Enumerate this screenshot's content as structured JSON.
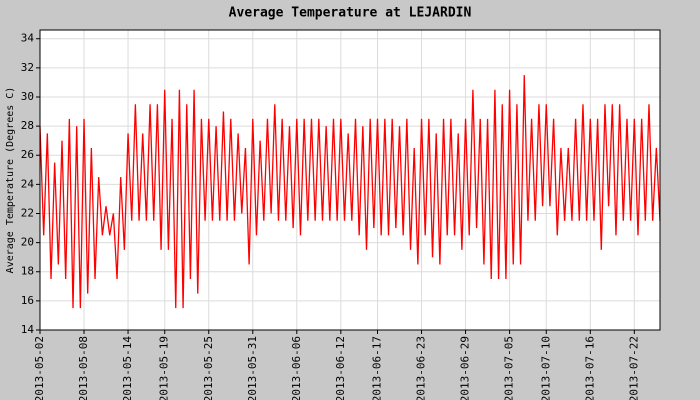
{
  "chart_data": {
    "type": "line",
    "title": "Average Temperature at LEJARDIN",
    "y_label": "Average Temperature (Degrees C)",
    "color": "#ff0000",
    "grid": true,
    "ylim": [
      14,
      34.6
    ],
    "yticks": [
      14,
      16,
      18,
      20,
      22,
      24,
      26,
      28,
      30,
      32,
      34
    ],
    "categories": [
      "2013-05-02",
      null,
      null,
      null,
      null,
      null,
      null,
      null,
      null,
      null,
      null,
      null,
      "2013-05-08",
      null,
      null,
      null,
      null,
      null,
      null,
      null,
      null,
      null,
      null,
      null,
      "2013-05-14",
      null,
      null,
      null,
      null,
      null,
      null,
      null,
      null,
      null,
      "2013-05-19",
      null,
      null,
      null,
      null,
      null,
      null,
      null,
      null,
      null,
      null,
      null,
      "2013-05-25",
      null,
      null,
      null,
      null,
      null,
      null,
      null,
      null,
      null,
      null,
      null,
      "2013-05-31",
      null,
      null,
      null,
      null,
      null,
      null,
      null,
      null,
      null,
      null,
      null,
      "2013-06-06",
      null,
      null,
      null,
      null,
      null,
      null,
      null,
      null,
      null,
      null,
      null,
      "2013-06-12",
      null,
      null,
      null,
      null,
      null,
      null,
      null,
      null,
      null,
      "2013-06-17",
      null,
      null,
      null,
      null,
      null,
      null,
      null,
      null,
      null,
      null,
      null,
      "2013-06-23",
      null,
      null,
      null,
      null,
      null,
      null,
      null,
      null,
      null,
      null,
      null,
      "2013-06-29",
      null,
      null,
      null,
      null,
      null,
      null,
      null,
      null,
      null,
      null,
      null,
      "2013-07-05",
      null,
      null,
      null,
      null,
      null,
      null,
      null,
      null,
      null,
      "2013-07-10",
      null,
      null,
      null,
      null,
      null,
      null,
      null,
      null,
      null,
      null,
      null,
      "2013-07-16",
      null,
      null,
      null,
      null,
      null,
      null,
      null,
      null,
      null,
      null,
      null,
      "2013-07-22",
      null,
      null,
      null,
      null,
      null,
      null,
      null
    ],
    "values": [
      28,
      20.5,
      27.5,
      17.5,
      25.5,
      18.5,
      27,
      17.5,
      28.5,
      15.5,
      28,
      15.5,
      28.5,
      16.5,
      26.5,
      17.5,
      24.5,
      20.5,
      22.5,
      20.5,
      22,
      17.5,
      24.5,
      19.5,
      27.5,
      21.5,
      29.5,
      21.5,
      27.5,
      21.5,
      29.5,
      21.5,
      29.5,
      19.5,
      30.5,
      19.5,
      28.5,
      15.5,
      30.5,
      15.5,
      29.5,
      17.5,
      30.5,
      16.5,
      28.5,
      21.5,
      28.5,
      21.5,
      28,
      21.5,
      29,
      21.5,
      28.5,
      21.5,
      27.5,
      22,
      26.5,
      18.5,
      28.5,
      20.5,
      27,
      21.5,
      28.5,
      22,
      29.5,
      21.5,
      28.5,
      21.5,
      28,
      21,
      28.5,
      20.5,
      28.5,
      21.5,
      28.5,
      21.5,
      28.5,
      21.5,
      28,
      21.5,
      28.5,
      21.5,
      28.5,
      21.5,
      27.5,
      21.5,
      28.5,
      20.5,
      28,
      19.5,
      28.5,
      21,
      28.5,
      20.5,
      28.5,
      20.5,
      28.5,
      21,
      28,
      20.5,
      28.5,
      19.5,
      26.5,
      18.5,
      28.5,
      20.5,
      28.5,
      19,
      27.5,
      18.5,
      28.5,
      20.5,
      28.5,
      20.5,
      27.5,
      19.5,
      28.5,
      20.5,
      30.5,
      21,
      28.5,
      18.5,
      28.5,
      17.5,
      30.5,
      17.5,
      29.5,
      17.5,
      30.5,
      18.5,
      29.5,
      18.5,
      31.5,
      21.5,
      28.5,
      21.5,
      29.5,
      22.5,
      29.5,
      22.5,
      28.5,
      20.5,
      26.5,
      21.5,
      26.5,
      21.5,
      28.5,
      21.5,
      29.5,
      21.5,
      28.5,
      21.5,
      28.5,
      19.5,
      29.5,
      22.5,
      29.5,
      20.5,
      29.5,
      21.5,
      28.5,
      21.5,
      28.5,
      20.5,
      28.5,
      21.5,
      29.5,
      21.5,
      26.5,
      21.5
    ]
  }
}
